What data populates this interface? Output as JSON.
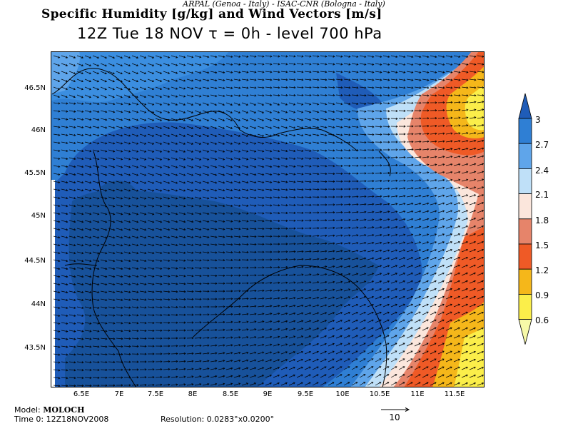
{
  "header": {
    "credit": "ARPAL (Genoa - Italy)  -  ISAC-CNR (Bologna - Italy)",
    "title": "Specific Humidity [g/kg] and Wind Vectors [m/s]",
    "subtitle": "12Z Tue 18 NOV  τ = 0h  -  level 700 hPa"
  },
  "map": {
    "lat_labels": [
      "46.5N",
      "46N",
      "45.5N",
      "45N",
      "44.5N",
      "44N",
      "43.5N"
    ],
    "lon_labels": [
      "6.5E",
      "7E",
      "7.5E",
      "8E",
      "8.5E",
      "9E",
      "9.5E",
      "10E",
      "10.5E",
      "11E",
      "11.5E"
    ]
  },
  "legend": {
    "values": [
      "3",
      "2.7",
      "2.4",
      "2.1",
      "1.8",
      "1.5",
      "1.2",
      "0.9",
      "0.6"
    ],
    "colors": [
      "#1f5cb8",
      "#2f7fd4",
      "#5fa5ea",
      "#bfe0f8",
      "#fbe6dc",
      "#e6846a",
      "#ef5a26",
      "#f5b71a",
      "#fbee4a",
      "#f7f9a8"
    ]
  },
  "field_colors": {
    "darkest": "#17519a",
    "dark": "#1f5cb8",
    "mid": "#2f7fd4",
    "light": "#5fa5ea",
    "pale_blue": "#bfe0f8",
    "pale_pink": "#fbe6dc",
    "salmon": "#e6846a",
    "orange": "#ef5a26",
    "amber": "#f5b71a",
    "yellow": "#fbee4a"
  },
  "footer": {
    "model_label": "Model:",
    "model_name": "MOLOCH",
    "time": "Time 0: 12Z18NOV2008",
    "resolution": "Resolution: 0.0283°x0.0200°",
    "reference_vector": "10"
  }
}
